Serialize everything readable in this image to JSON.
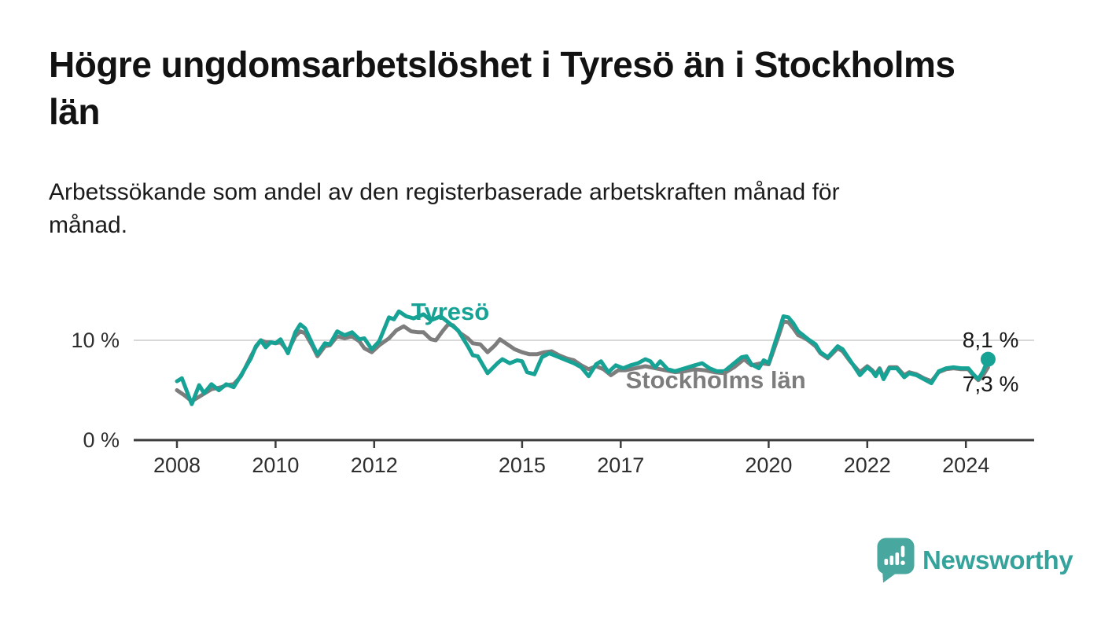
{
  "header": {
    "title_line1": "Högre ungdomsarbetslöshet i Tyresö än i Stockholms",
    "title_line2": "län",
    "subtitle_line1": "Arbetssökande som andel av den registerbaserade arbetskraften månad för",
    "subtitle_line2": "månad."
  },
  "footer": {
    "brand": "Newsworthy",
    "logo_icon": "speech-bubble-bar-chart-icon"
  },
  "colors": {
    "background": "#ffffff",
    "title_text": "#121212",
    "axis_text": "#2e2e2e",
    "axis_line": "#3d3d3d",
    "gridline": "#d8d8d8",
    "tyreso_teal": "#16a294",
    "stockholm_gray": "#7d7d7d",
    "value_label_text": "#1a1a1a",
    "brand_teal": "#3aa49d",
    "logo_bubble_teal": "#48a79f"
  },
  "chart_data": {
    "type": "line",
    "title": "Högre ungdomsarbetslöshet i Tyresö än i Stockholms län",
    "subtitle": "Arbetssökande som andel av den registerbaserade arbetskraften månad för månad.",
    "unit": "%",
    "legend_position": "inline-labels-on-lines",
    "grid": "single horizontal gridline at 10 %",
    "x_axis": {
      "range": [
        2007.1,
        2025.4
      ],
      "ticks": [
        {
          "value": 2008,
          "label": "2008"
        },
        {
          "value": 2010,
          "label": "2010"
        },
        {
          "value": 2012,
          "label": "2012"
        },
        {
          "value": 2015,
          "label": "2015"
        },
        {
          "value": 2017,
          "label": "2017"
        },
        {
          "value": 2020,
          "label": "2020"
        },
        {
          "value": 2022,
          "label": "2022"
        },
        {
          "value": 2024,
          "label": "2024"
        }
      ]
    },
    "y_axis": {
      "range": [
        0,
        16.1
      ],
      "ticks": [
        {
          "value": 0,
          "label": "0 %"
        },
        {
          "value": 10,
          "label": "10 %"
        }
      ]
    },
    "series": [
      {
        "name": "Tyresö",
        "color": "#16a294",
        "end_label": "8,1 %",
        "end_value": 8.1,
        "end_dot": true,
        "label_anchor": {
          "year": 2012.75,
          "value": 12.05
        },
        "end_label_anchor": {
          "year": 2023.93,
          "value": 9.3
        },
        "points": [
          [
            2008.0,
            5.9
          ],
          [
            2008.1,
            6.2
          ],
          [
            2008.3,
            3.6
          ],
          [
            2008.45,
            5.5
          ],
          [
            2008.55,
            4.7
          ],
          [
            2008.7,
            5.6
          ],
          [
            2008.85,
            5.0
          ],
          [
            2009.0,
            5.6
          ],
          [
            2009.15,
            5.3
          ],
          [
            2009.3,
            6.5
          ],
          [
            2009.5,
            8.2
          ],
          [
            2009.6,
            9.4
          ],
          [
            2009.7,
            10.0
          ],
          [
            2009.8,
            9.3
          ],
          [
            2009.9,
            9.8
          ],
          [
            2010.0,
            9.7
          ],
          [
            2010.1,
            10.1
          ],
          [
            2010.25,
            8.7
          ],
          [
            2010.4,
            10.8
          ],
          [
            2010.5,
            11.6
          ],
          [
            2010.6,
            11.2
          ],
          [
            2010.75,
            9.6
          ],
          [
            2010.85,
            8.6
          ],
          [
            2011.0,
            9.7
          ],
          [
            2011.1,
            9.6
          ],
          [
            2011.25,
            10.9
          ],
          [
            2011.4,
            10.5
          ],
          [
            2011.55,
            10.8
          ],
          [
            2011.7,
            10.1
          ],
          [
            2011.8,
            10.2
          ],
          [
            2011.95,
            9.1
          ],
          [
            2012.1,
            9.9
          ],
          [
            2012.3,
            12.3
          ],
          [
            2012.4,
            12.1
          ],
          [
            2012.5,
            12.9
          ],
          [
            2012.65,
            12.4
          ],
          [
            2012.8,
            12.2
          ],
          [
            2013.0,
            12.6
          ],
          [
            2013.15,
            12.0
          ],
          [
            2013.35,
            12.4
          ],
          [
            2013.5,
            11.8
          ],
          [
            2013.7,
            11.0
          ],
          [
            2013.9,
            9.4
          ],
          [
            2014.0,
            8.5
          ],
          [
            2014.1,
            8.4
          ],
          [
            2014.3,
            6.7
          ],
          [
            2014.5,
            7.7
          ],
          [
            2014.6,
            8.1
          ],
          [
            2014.75,
            7.7
          ],
          [
            2014.9,
            8.0
          ],
          [
            2015.0,
            7.9
          ],
          [
            2015.1,
            6.8
          ],
          [
            2015.25,
            6.6
          ],
          [
            2015.4,
            8.3
          ],
          [
            2015.55,
            8.7
          ],
          [
            2015.7,
            8.4
          ],
          [
            2015.9,
            8.0
          ],
          [
            2016.05,
            7.7
          ],
          [
            2016.2,
            7.3
          ],
          [
            2016.35,
            6.4
          ],
          [
            2016.5,
            7.6
          ],
          [
            2016.6,
            7.9
          ],
          [
            2016.75,
            6.8
          ],
          [
            2016.9,
            7.5
          ],
          [
            2017.05,
            7.2
          ],
          [
            2017.2,
            7.5
          ],
          [
            2017.35,
            7.7
          ],
          [
            2017.5,
            8.1
          ],
          [
            2017.6,
            7.9
          ],
          [
            2017.7,
            7.3
          ],
          [
            2017.8,
            7.9
          ],
          [
            2017.95,
            7.1
          ],
          [
            2018.1,
            6.9
          ],
          [
            2018.3,
            7.2
          ],
          [
            2018.5,
            7.5
          ],
          [
            2018.65,
            7.7
          ],
          [
            2018.8,
            7.2
          ],
          [
            2018.95,
            6.9
          ],
          [
            2019.1,
            6.9
          ],
          [
            2019.3,
            7.7
          ],
          [
            2019.45,
            8.3
          ],
          [
            2019.55,
            8.4
          ],
          [
            2019.65,
            7.6
          ],
          [
            2019.8,
            7.2
          ],
          [
            2019.9,
            8.0
          ],
          [
            2020.0,
            7.7
          ],
          [
            2020.1,
            9.3
          ],
          [
            2020.2,
            10.8
          ],
          [
            2020.3,
            12.4
          ],
          [
            2020.4,
            12.3
          ],
          [
            2020.5,
            11.7
          ],
          [
            2020.6,
            10.9
          ],
          [
            2020.7,
            10.5
          ],
          [
            2020.8,
            10.1
          ],
          [
            2020.95,
            9.6
          ],
          [
            2021.05,
            8.8
          ],
          [
            2021.2,
            8.3
          ],
          [
            2021.4,
            9.4
          ],
          [
            2021.5,
            9.1
          ],
          [
            2021.65,
            8.0
          ],
          [
            2021.85,
            6.5
          ],
          [
            2022.0,
            7.3
          ],
          [
            2022.1,
            6.9
          ],
          [
            2022.17,
            6.4
          ],
          [
            2022.25,
            7.1
          ],
          [
            2022.33,
            6.1
          ],
          [
            2022.45,
            7.2
          ],
          [
            2022.6,
            7.2
          ],
          [
            2022.75,
            6.3
          ],
          [
            2022.85,
            6.7
          ],
          [
            2023.0,
            6.5
          ],
          [
            2023.15,
            6.1
          ],
          [
            2023.3,
            5.7
          ],
          [
            2023.45,
            6.9
          ],
          [
            2023.6,
            7.2
          ],
          [
            2023.75,
            7.3
          ],
          [
            2023.9,
            7.2
          ],
          [
            2024.05,
            7.2
          ],
          [
            2024.15,
            6.6
          ],
          [
            2024.25,
            6.1
          ],
          [
            2024.35,
            6.9
          ],
          [
            2024.45,
            8.1
          ]
        ]
      },
      {
        "name": "Stockholms län",
        "color": "#7d7d7d",
        "end_label": "7,3 %",
        "end_value": 7.3,
        "end_dot": false,
        "label_anchor": {
          "year": 2017.1,
          "value": 5.2
        },
        "end_label_anchor": {
          "year": 2023.93,
          "value": 4.9
        },
        "points": [
          [
            2008.0,
            5.0
          ],
          [
            2008.15,
            4.5
          ],
          [
            2008.3,
            3.9
          ],
          [
            2008.5,
            4.5
          ],
          [
            2008.7,
            5.1
          ],
          [
            2008.9,
            5.3
          ],
          [
            2009.0,
            5.5
          ],
          [
            2009.15,
            5.6
          ],
          [
            2009.3,
            6.4
          ],
          [
            2009.5,
            8.4
          ],
          [
            2009.6,
            9.3
          ],
          [
            2009.7,
            10.0
          ],
          [
            2009.8,
            9.8
          ],
          [
            2009.9,
            9.8
          ],
          [
            2010.0,
            9.7
          ],
          [
            2010.1,
            9.8
          ],
          [
            2010.25,
            8.9
          ],
          [
            2010.4,
            10.4
          ],
          [
            2010.5,
            10.9
          ],
          [
            2010.6,
            10.7
          ],
          [
            2010.75,
            9.4
          ],
          [
            2010.85,
            8.4
          ],
          [
            2011.0,
            9.4
          ],
          [
            2011.1,
            9.5
          ],
          [
            2011.25,
            10.4
          ],
          [
            2011.4,
            10.2
          ],
          [
            2011.55,
            10.4
          ],
          [
            2011.7,
            9.9
          ],
          [
            2011.8,
            9.2
          ],
          [
            2011.95,
            8.8
          ],
          [
            2012.1,
            9.5
          ],
          [
            2012.3,
            10.2
          ],
          [
            2012.45,
            11.0
          ],
          [
            2012.6,
            11.4
          ],
          [
            2012.75,
            10.9
          ],
          [
            2012.9,
            10.8
          ],
          [
            2013.0,
            10.8
          ],
          [
            2013.15,
            10.1
          ],
          [
            2013.25,
            10.0
          ],
          [
            2013.4,
            11.0
          ],
          [
            2013.5,
            11.6
          ],
          [
            2013.6,
            11.5
          ],
          [
            2013.75,
            10.7
          ],
          [
            2013.9,
            10.2
          ],
          [
            2014.0,
            9.7
          ],
          [
            2014.15,
            9.6
          ],
          [
            2014.3,
            8.8
          ],
          [
            2014.45,
            9.5
          ],
          [
            2014.55,
            10.1
          ],
          [
            2014.7,
            9.6
          ],
          [
            2014.85,
            9.1
          ],
          [
            2015.0,
            8.8
          ],
          [
            2015.15,
            8.6
          ],
          [
            2015.3,
            8.6
          ],
          [
            2015.45,
            8.8
          ],
          [
            2015.6,
            8.9
          ],
          [
            2015.75,
            8.5
          ],
          [
            2015.9,
            8.2
          ],
          [
            2016.05,
            8.0
          ],
          [
            2016.2,
            7.5
          ],
          [
            2016.35,
            7.1
          ],
          [
            2016.5,
            7.4
          ],
          [
            2016.65,
            7.1
          ],
          [
            2016.8,
            6.5
          ],
          [
            2016.95,
            7.0
          ],
          [
            2017.1,
            7.0
          ],
          [
            2017.3,
            7.2
          ],
          [
            2017.5,
            7.4
          ],
          [
            2017.7,
            7.2
          ],
          [
            2017.9,
            7.0
          ],
          [
            2018.1,
            6.8
          ],
          [
            2018.3,
            6.9
          ],
          [
            2018.5,
            7.1
          ],
          [
            2018.7,
            7.0
          ],
          [
            2018.9,
            6.8
          ],
          [
            2019.1,
            6.7
          ],
          [
            2019.3,
            7.3
          ],
          [
            2019.5,
            8.1
          ],
          [
            2019.65,
            7.5
          ],
          [
            2019.85,
            7.7
          ],
          [
            2020.0,
            7.6
          ],
          [
            2020.1,
            9.0
          ],
          [
            2020.2,
            10.4
          ],
          [
            2020.3,
            11.9
          ],
          [
            2020.4,
            11.8
          ],
          [
            2020.5,
            11.2
          ],
          [
            2020.6,
            10.5
          ],
          [
            2020.7,
            10.3
          ],
          [
            2020.8,
            10.0
          ],
          [
            2020.95,
            9.4
          ],
          [
            2021.05,
            8.7
          ],
          [
            2021.2,
            8.2
          ],
          [
            2021.4,
            9.2
          ],
          [
            2021.5,
            8.9
          ],
          [
            2021.65,
            7.9
          ],
          [
            2021.85,
            6.8
          ],
          [
            2022.0,
            7.4
          ],
          [
            2022.1,
            7.0
          ],
          [
            2022.17,
            6.6
          ],
          [
            2022.25,
            7.2
          ],
          [
            2022.33,
            6.3
          ],
          [
            2022.45,
            7.3
          ],
          [
            2022.6,
            7.3
          ],
          [
            2022.75,
            6.5
          ],
          [
            2022.85,
            6.8
          ],
          [
            2023.0,
            6.6
          ],
          [
            2023.15,
            6.2
          ],
          [
            2023.3,
            5.9
          ],
          [
            2023.45,
            6.8
          ],
          [
            2023.6,
            7.1
          ],
          [
            2023.75,
            7.2
          ],
          [
            2023.9,
            7.1
          ],
          [
            2024.05,
            7.1
          ],
          [
            2024.15,
            6.5
          ],
          [
            2024.25,
            6.0
          ],
          [
            2024.35,
            6.5
          ],
          [
            2024.45,
            7.3
          ]
        ]
      }
    ]
  }
}
